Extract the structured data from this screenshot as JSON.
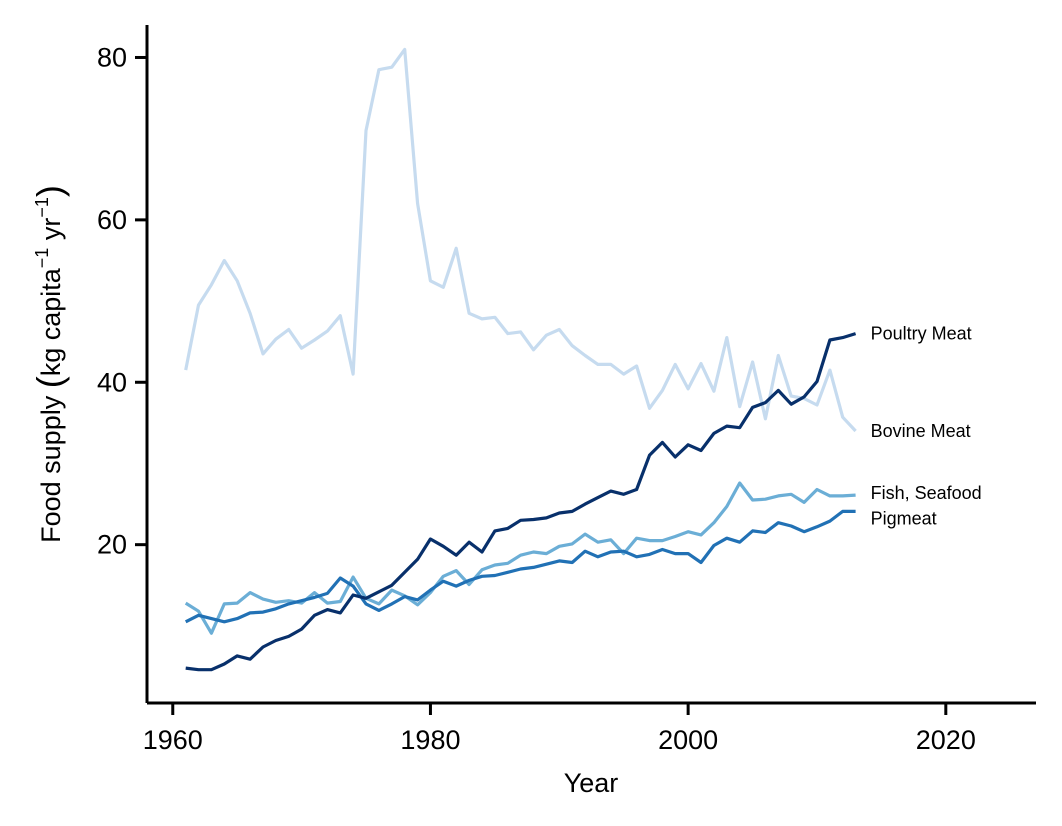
{
  "chart_data": {
    "type": "line",
    "xlabel": "Year",
    "ylabel": "Food supply (kg capita⁻¹ yr⁻¹)",
    "ylabel_main": "Food supply",
    "ylabel_unit_kg": "kg capita",
    "ylabel_unit_yr": "yr",
    "ylabel_sup": "−1",
    "xlim": [
      1958,
      2027
    ],
    "ylim": [
      0.5,
      84
    ],
    "xticks": [
      1960,
      1980,
      2000,
      2020
    ],
    "yticks": [
      20,
      40,
      60,
      80
    ],
    "x": [
      1961,
      1962,
      1963,
      1964,
      1965,
      1966,
      1967,
      1968,
      1969,
      1970,
      1971,
      1972,
      1973,
      1974,
      1975,
      1976,
      1977,
      1978,
      1979,
      1980,
      1981,
      1982,
      1983,
      1984,
      1985,
      1986,
      1987,
      1988,
      1989,
      1990,
      1991,
      1992,
      1993,
      1994,
      1995,
      1996,
      1997,
      1998,
      1999,
      2000,
      2001,
      2002,
      2003,
      2004,
      2005,
      2006,
      2007,
      2008,
      2009,
      2010,
      2011,
      2012,
      2013
    ],
    "series": [
      {
        "name": "Bovine Meat",
        "color": "#c6dbef",
        "values": [
          41.5,
          49.5,
          52,
          55,
          52.5,
          48.5,
          43.5,
          45.3,
          46.5,
          44.2,
          45.2,
          46.3,
          48.2,
          41,
          71,
          78.5,
          78.8,
          81,
          62,
          52.5,
          51.7,
          56.5,
          48.5,
          47.8,
          48,
          46,
          46.2,
          44,
          45.8,
          46.5,
          44.5,
          43.3,
          42.2,
          42.2,
          41,
          42,
          36.8,
          39,
          42.2,
          39.2,
          42.3,
          38.9,
          45.5,
          37,
          42.5,
          35.5,
          43.3,
          38.3,
          38,
          37.2,
          41.5,
          35.7,
          34
        ]
      },
      {
        "name": "Fish, Seafood",
        "color": "#6baed6",
        "values": [
          12.8,
          11.8,
          9.1,
          12.7,
          12.8,
          14.1,
          13.3,
          12.9,
          13.1,
          12.8,
          14.1,
          12.8,
          13,
          16,
          13.4,
          12.7,
          14.4,
          13.7,
          12.6,
          14.1,
          16.1,
          16.8,
          15.1,
          16.9,
          17.5,
          17.7,
          18.7,
          19.1,
          18.9,
          19.8,
          20.1,
          21.3,
          20.3,
          20.6,
          18.9,
          20.8,
          20.5,
          20.5,
          21,
          21.6,
          21.2,
          22.7,
          24.7,
          27.6,
          25.5,
          25.6,
          26,
          26.2,
          25.2,
          26.8,
          26,
          26,
          26.1
        ]
      },
      {
        "name": "Pigmeat",
        "color": "#2171b5",
        "values": [
          10.5,
          11.3,
          10.9,
          10.5,
          10.9,
          11.6,
          11.7,
          12.1,
          12.7,
          13.1,
          13.5,
          14,
          15.9,
          14.9,
          12.7,
          11.9,
          12.7,
          13.6,
          13.2,
          14.4,
          15.5,
          14.9,
          15.6,
          16.1,
          16.2,
          16.6,
          17,
          17.2,
          17.6,
          18,
          17.8,
          19.2,
          18.5,
          19.1,
          19.2,
          18.5,
          18.8,
          19.4,
          18.9,
          18.9,
          17.8,
          19.9,
          20.8,
          20.3,
          21.7,
          21.5,
          22.7,
          22.3,
          21.6,
          22.2,
          22.9,
          24.1,
          24.1
        ]
      },
      {
        "name": "Poultry Meat",
        "color": "#08306b",
        "values": [
          4.8,
          4.6,
          4.6,
          5.3,
          6.3,
          5.9,
          7.4,
          8.2,
          8.7,
          9.6,
          11.3,
          12,
          11.6,
          13.8,
          13.4,
          14.2,
          15,
          16.6,
          18.2,
          20.7,
          19.8,
          18.7,
          20.3,
          19.1,
          21.7,
          22,
          23,
          23.1,
          23.3,
          23.9,
          24.1,
          25,
          25.8,
          26.6,
          26.2,
          26.8,
          31,
          32.6,
          30.8,
          32.3,
          31.6,
          33.7,
          34.6,
          34.4,
          36.9,
          37.5,
          39,
          37.3,
          38.2,
          40.1,
          45.2,
          45.5,
          46
        ]
      }
    ]
  }
}
